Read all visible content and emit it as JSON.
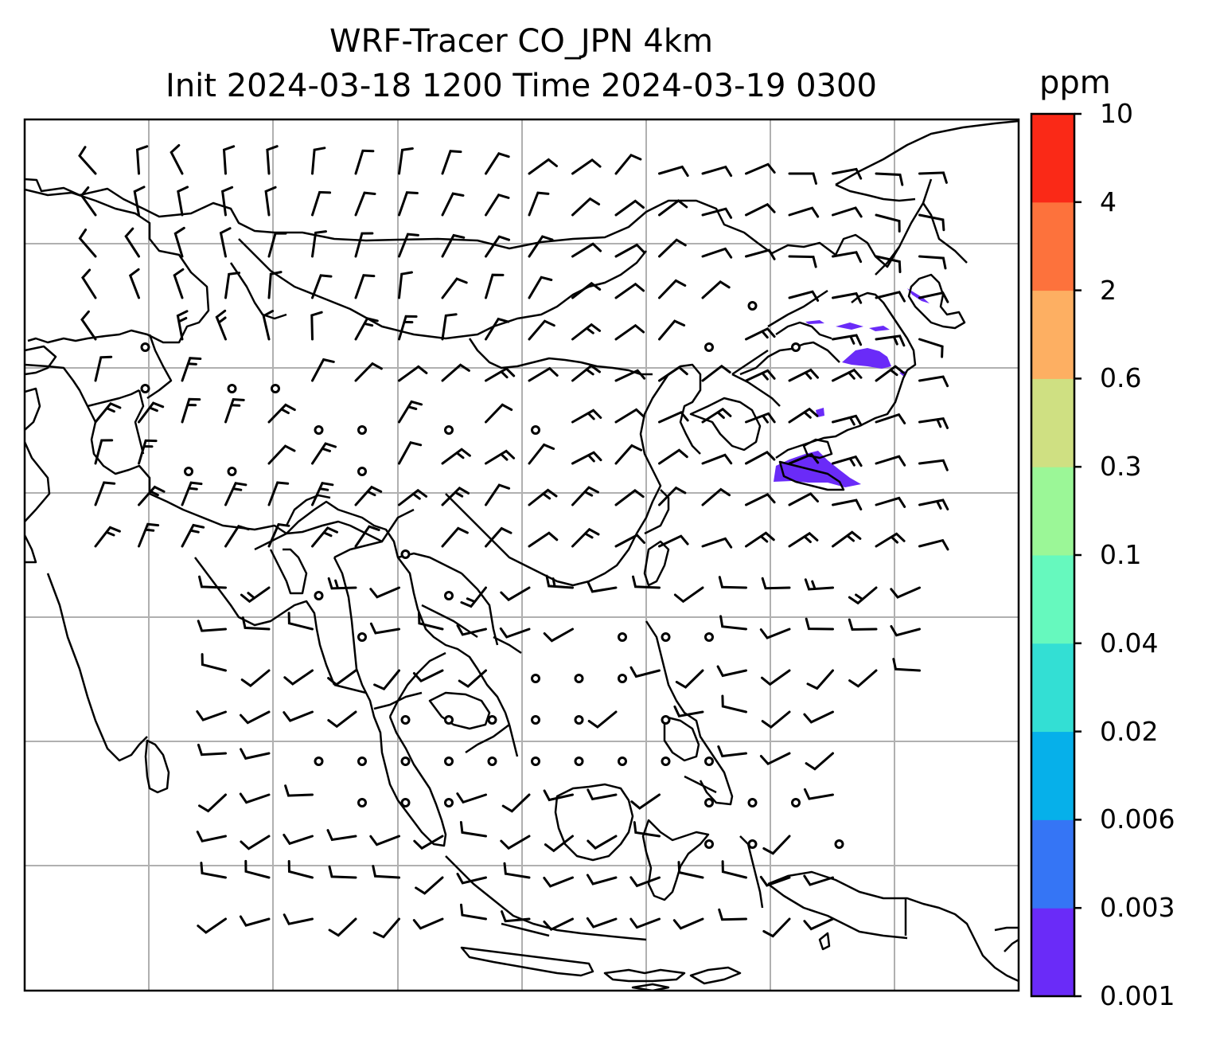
{
  "title": {
    "line1": "WRF-Tracer CO_JPN 4km",
    "line2": "Init 2024-03-18 1200 Time 2024-03-19 0300"
  },
  "colorbar": {
    "unit": "ppm",
    "tick_labels": [
      "0.001",
      "0.003",
      "0.006",
      "0.02",
      "0.04",
      "0.1",
      "0.3",
      "0.6",
      "2",
      "4",
      "10"
    ],
    "colors": [
      "#6a2bf8",
      "#3575f5",
      "#06b0ea",
      "#33dfd4",
      "#66f9be",
      "#9bf797",
      "#cfe082",
      "#fdaf62",
      "#fd723c",
      "#fa2917"
    ]
  },
  "map": {
    "grid_lines": true,
    "tracer_color": "#6a2bf8",
    "wind_barbs": true
  }
}
